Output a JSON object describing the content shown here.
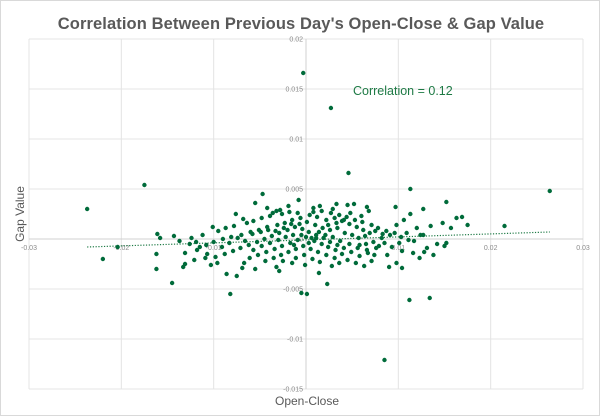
{
  "chart_data": {
    "type": "scatter",
    "title": "Correlation Between Previous  Day's Open-Close & Gap Value",
    "xlabel": "Open-Close",
    "ylabel": "Gap Value",
    "xlim": [
      -0.03,
      0.03
    ],
    "ylim": [
      -0.015,
      0.02
    ],
    "xticks": [
      -0.03,
      -0.02,
      -0.01,
      0,
      0.01,
      0.02,
      0.03
    ],
    "xtick_labels": [
      "-0.03",
      "-0.02",
      "-0.01",
      "0",
      "0.01",
      "0.02",
      "0.03"
    ],
    "yticks": [
      -0.015,
      -0.01,
      -0.005,
      0,
      0.005,
      0.01,
      0.015,
      0.02
    ],
    "ytick_labels": [
      "-0.015",
      "-0.01",
      "-0.005",
      "0",
      "0.005",
      "0.01",
      "0.015",
      "0.02"
    ],
    "grid": true,
    "legend": "none",
    "annotation": "Correlation = 0.12",
    "colors": {
      "points": "#006b3a",
      "trendline": "#1e7a45",
      "annotation": "#1e7a45"
    },
    "trendline": {
      "type": "linear",
      "x": [
        -0.0237,
        0.0264
      ],
      "y": [
        -0.0008,
        0.0007
      ]
    },
    "series": [
      {
        "name": "Gap Value",
        "points": [
          [
            -0.0237,
            0.003
          ],
          [
            -0.0175,
            0.0054
          ],
          [
            -0.022,
            -0.002
          ],
          [
            -0.0204,
            -0.0008
          ],
          [
            -0.0161,
            0.0005
          ],
          [
            -0.0158,
            0.0001
          ],
          [
            -0.0162,
            -0.0015
          ],
          [
            -0.0162,
            -0.003
          ],
          [
            -0.0145,
            -0.0044
          ],
          [
            -0.0131,
            -0.0014
          ],
          [
            -0.0131,
            -0.0025
          ],
          [
            -0.0119,
            -0.0003
          ],
          [
            -0.0124,
            0.0001
          ],
          [
            -0.0115,
            -0.0008
          ],
          [
            -0.0109,
            -0.0019
          ],
          [
            -0.0096,
            -0.0024
          ],
          [
            -0.0082,
            -0.0055
          ],
          [
            -0.0086,
            -0.0035
          ],
          [
            -0.0075,
            -0.0037
          ],
          [
            -0.0069,
            -0.0029
          ],
          [
            -0.0055,
            -0.003
          ],
          [
            -0.0032,
            -0.0028
          ],
          [
            -0.0025,
            -0.0022
          ],
          [
            -0.0005,
            -0.0054
          ],
          [
            0.0001,
            -0.0055
          ],
          [
            0.0014,
            -0.0034
          ],
          [
            0.0023,
            -0.0045
          ],
          [
            0.0085,
            -0.0121
          ],
          [
            0.0112,
            -0.0061
          ],
          [
            0.0134,
            -0.0059
          ],
          [
            -0.0003,
            0.0166
          ],
          [
            0.0027,
            0.0131
          ],
          [
            0.0046,
            0.0066
          ],
          [
            0.0113,
            0.005
          ],
          [
            0.0264,
            0.0048
          ],
          [
            0.0215,
            0.0013
          ],
          [
            -0.0047,
            0.0045
          ],
          [
            -0.0055,
            0.0036
          ],
          [
            -0.0008,
            0.0039
          ],
          [
            -0.0036,
            0.0026
          ],
          [
            -0.0032,
            0.0028
          ],
          [
            -0.0028,
            0.0029
          ],
          [
            -0.0076,
            0.0025
          ],
          [
            -0.0068,
            0.002
          ],
          [
            0.0015,
            0.0033
          ],
          [
            0.0033,
            0.0035
          ],
          [
            0.0045,
            0.0034
          ],
          [
            0.0052,
            0.0035
          ],
          [
            0.0066,
            0.0032
          ],
          [
            0.0097,
            0.0032
          ],
          [
            0.0127,
            0.003
          ],
          [
            0.0152,
            0.0037
          ],
          [
            0.0163,
            0.0021
          ],
          [
            0.0169,
            0.0022
          ],
          [
            0.0175,
            0.0014
          ],
          [
            0.0148,
            0.0016
          ],
          [
            0.0135,
            0.0013
          ],
          [
            0.0157,
            0.0011
          ],
          [
            0.0127,
            0.0004
          ],
          [
            0.0124,
            0.0004
          ],
          [
            0.0103,
            0.0002
          ],
          [
            0.0111,
            -0.0001
          ],
          [
            0.0117,
            -0.0002
          ],
          [
            0.0142,
            -0.0005
          ],
          [
            0.015,
            -0.0007
          ],
          [
            0.0128,
            -0.0013
          ],
          [
            0.0131,
            -0.0009
          ],
          [
            0.0152,
            -0.0004
          ],
          [
            0.0098,
            -0.0024
          ],
          [
            0.0088,
            -0.0016
          ],
          [
            0.0104,
            -0.0012
          ],
          [
            0.0079,
            -0.0007
          ],
          [
            0.0066,
            -0.0011
          ],
          [
            0.0058,
            -0.0006
          ],
          [
            0.0073,
            -0.0003
          ],
          [
            0.0082,
            0.0001
          ],
          [
            0.0091,
            0.0004
          ],
          [
            0.0069,
            0.0006
          ],
          [
            0.0062,
            0.0009
          ],
          [
            0.0055,
            0.0012
          ],
          [
            0.0047,
            0.0015
          ],
          [
            0.0039,
            0.0018
          ],
          [
            0.0031,
            0.0021
          ],
          [
            0.0022,
            0.0019
          ],
          [
            0.0012,
            0.0022
          ],
          [
            0.0004,
            0.0024
          ],
          [
            -0.0006,
            0.0021
          ],
          [
            -0.0015,
            0.0019
          ],
          [
            -0.0023,
            0.0016
          ],
          [
            -0.0031,
            0.0014
          ],
          [
            -0.0042,
            0.0012
          ],
          [
            -0.0051,
            0.0009
          ],
          [
            -0.006,
            0.0007
          ],
          [
            -0.007,
            0.0004
          ],
          [
            -0.0081,
            0.0002
          ],
          [
            -0.009,
            0.0
          ],
          [
            -0.01,
            -0.0003
          ],
          [
            -0.0108,
            -0.0006
          ],
          [
            -0.0095,
            0.0008
          ],
          [
            -0.0087,
            0.0011
          ],
          [
            -0.0078,
            0.0013
          ],
          [
            -0.0064,
            0.0016
          ],
          [
            -0.0057,
            0.0018
          ],
          [
            -0.0048,
            0.0021
          ],
          [
            -0.0039,
            0.0023
          ],
          [
            -0.0026,
            0.0025
          ],
          [
            -0.0018,
            0.0027
          ],
          [
            -0.0009,
            0.0026
          ],
          [
            0.0008,
            0.0027
          ],
          [
            0.0017,
            0.0028
          ],
          [
            0.0027,
            0.0026
          ],
          [
            0.0036,
            0.0024
          ],
          [
            0.0044,
            0.0022
          ],
          [
            0.0053,
            0.0019
          ],
          [
            0.0061,
            0.0017
          ],
          [
            0.0071,
            0.0014
          ],
          [
            0.0078,
            0.0011
          ],
          [
            0.0087,
            0.0008
          ],
          [
            0.0096,
            0.0006
          ],
          [
            0.0085,
            -0.0004
          ],
          [
            0.0076,
            -0.0009
          ],
          [
            0.0067,
            -0.0014
          ],
          [
            0.0058,
            -0.0017
          ],
          [
            0.0049,
            -0.0013
          ],
          [
            0.0041,
            -0.0009
          ],
          [
            0.0034,
            -0.0006
          ],
          [
            0.0026,
            -0.0003
          ],
          [
            0.0019,
            0.0001
          ],
          [
            0.0011,
            0.0004
          ],
          [
            0.0003,
            0.0007
          ],
          [
            -0.0004,
            0.001
          ],
          [
            -0.0012,
            0.0012
          ],
          [
            -0.002,
            0.0009
          ],
          [
            -0.0029,
            0.0006
          ],
          [
            -0.0037,
            0.0003
          ],
          [
            -0.0045,
            0.0
          ],
          [
            -0.0053,
            -0.0003
          ],
          [
            -0.0062,
            -0.0006
          ],
          [
            -0.0071,
            -0.0009
          ],
          [
            -0.0079,
            -0.0012
          ],
          [
            -0.0088,
            -0.0015
          ],
          [
            -0.0061,
            -0.0019
          ],
          [
            -0.0052,
            -0.0016
          ],
          [
            -0.0043,
            -0.0013
          ],
          [
            -0.0034,
            -0.001
          ],
          [
            -0.0026,
            -0.0007
          ],
          [
            -0.0017,
            -0.0004
          ],
          [
            -0.0009,
            -0.0001
          ],
          [
            0.0,
            0.0002
          ],
          [
            0.0009,
            -0.0002
          ],
          [
            0.0017,
            -0.0005
          ],
          [
            0.0024,
            -0.0008
          ],
          [
            0.0032,
            -0.0011
          ],
          [
            0.0039,
            -0.0015
          ],
          [
            0.0031,
            -0.0019
          ],
          [
            0.0022,
            -0.0016
          ],
          [
            0.0013,
            -0.0013
          ],
          [
            0.0005,
            -0.001
          ],
          [
            -0.0003,
            -0.0007
          ],
          [
            -0.0011,
            -0.001
          ],
          [
            -0.0019,
            -0.0013
          ],
          [
            -0.0027,
            -0.0016
          ],
          [
            -0.0035,
            -0.0019
          ],
          [
            -0.0044,
            -0.0022
          ],
          [
            -0.0011,
            -0.0019
          ],
          [
            -0.0002,
            -0.0016
          ],
          [
            0.0007,
            -0.002
          ],
          [
            0.0015,
            -0.0023
          ],
          [
            0.0045,
            -0.0021
          ],
          [
            0.0054,
            -0.0024
          ],
          [
            0.0063,
            -0.0027
          ],
          [
            0.0071,
            -0.0022
          ],
          [
            -0.0014,
            0.0004
          ],
          [
            -0.0022,
            0.0002
          ],
          [
            -0.003,
            -0.0001
          ],
          [
            -0.0007,
            0.0015
          ],
          [
            0.0001,
            0.0017
          ],
          [
            0.001,
            0.0014
          ],
          [
            0.0018,
            0.0011
          ],
          [
            0.0026,
            0.0009
          ],
          [
            0.0034,
            0.0011
          ],
          [
            0.0042,
            0.0006
          ],
          [
            0.005,
            0.0004
          ],
          [
            0.0057,
            0.0001
          ],
          [
            0.0064,
            0.0003
          ],
          [
            0.0075,
            0.0008
          ],
          [
            0.0083,
            0.0005
          ],
          [
            0.0093,
            -0.0008
          ],
          [
            0.0101,
            -0.0004
          ],
          [
            0.0109,
            0.0006
          ],
          [
            0.012,
            0.0011
          ],
          [
            0.0116,
            -0.0014
          ],
          [
            -0.0101,
            0.0012
          ],
          [
            -0.0112,
            0.0004
          ],
          [
            -0.0118,
            -0.0011
          ],
          [
            -0.0126,
            -0.0005
          ],
          [
            -0.0137,
            -0.0002
          ],
          [
            -0.0143,
            0.0003
          ],
          [
            -0.0107,
            -0.0015
          ],
          [
            -0.0098,
            -0.0018
          ],
          [
            -0.0091,
            -0.0008
          ],
          [
            -0.0083,
            -0.0004
          ],
          [
            -0.0074,
            0.0001
          ],
          [
            -0.0066,
            -0.0002
          ],
          [
            -0.0058,
            0.0005
          ],
          [
            -0.0049,
            0.0007
          ],
          [
            -0.0041,
            0.0009
          ],
          [
            -0.0033,
            0.0008
          ],
          [
            -0.0024,
            0.0011
          ],
          [
            -0.0016,
            0.0015
          ],
          [
            -0.0005,
            0.0004
          ],
          [
            0.0006,
            0.0001
          ],
          [
            0.0014,
            0.0007
          ],
          [
            0.0021,
            0.0004
          ],
          [
            0.0029,
            0.0002
          ],
          [
            0.0037,
            -0.0002
          ],
          [
            0.0047,
            -0.0005
          ],
          [
            0.0056,
            -0.0009
          ],
          [
            0.0065,
            -0.0005
          ],
          [
            0.0074,
            -0.0016
          ],
          [
            -0.0001,
            -0.0026
          ],
          [
            -0.0015,
            -0.0024
          ],
          [
            0.0028,
            -0.0027
          ],
          [
            0.0036,
            -0.0024
          ],
          [
            -0.0048,
            -0.0007
          ],
          [
            -0.0057,
            -0.0011
          ],
          [
            -0.0039,
            -0.0004
          ],
          [
            -0.0013,
            -0.0006
          ],
          [
            0.0003,
            -0.0004
          ],
          [
            0.0011,
            0.0001
          ],
          [
            0.0024,
            0.0014
          ],
          [
            0.0033,
            0.0016
          ],
          [
            0.0041,
            0.0019
          ],
          [
            0.0048,
            0.0026
          ],
          [
            0.006,
            0.0023
          ],
          [
            0.0068,
            0.0028
          ],
          [
            -0.0019,
            0.0033
          ],
          [
            -0.0042,
            0.0031
          ],
          [
            0.0008,
            0.0031
          ],
          [
            0.0029,
            0.003
          ],
          [
            0.0106,
            0.0019
          ],
          [
            0.0113,
            0.0025
          ],
          [
            0.0098,
            0.0014
          ],
          [
            0.0123,
            -0.0019
          ],
          [
            0.0138,
            -0.0016
          ],
          [
            0.0104,
            -0.0029
          ],
          [
            0.009,
            -0.0028
          ],
          [
            -0.0103,
            -0.0026
          ],
          [
            -0.0121,
            -0.0021
          ],
          [
            -0.0133,
            -0.0028
          ],
          [
            -0.0067,
            -0.0024
          ],
          [
            -0.0029,
            -0.0032
          ]
        ]
      }
    ]
  }
}
